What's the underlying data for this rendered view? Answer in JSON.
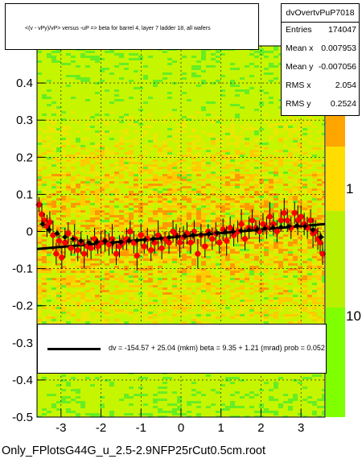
{
  "chart_data": {
    "type": "scatter",
    "title": "<(v - vPy)/vP> versus -uP => beta for barrel 4, layer 7 ladder 18, all wafers",
    "xlim": [
      -3.6,
      3.6
    ],
    "ylim": [
      -0.5,
      0.5
    ],
    "x_ticks": [
      "-3",
      "-2",
      "-1",
      "0",
      "1",
      "2",
      "3"
    ],
    "y_ticks": [
      "-0.5",
      "-0.4",
      "-0.3",
      "-0.2",
      "-0.1",
      "0",
      "0.1",
      "0.2",
      "0.3",
      "0.4"
    ],
    "z_ticks": [
      "1",
      "10"
    ],
    "z_top_label": "0",
    "grid": true,
    "stats": {
      "name": "dvOvertvPuP7018",
      "rows": [
        {
          "label": "Entries",
          "value": "174047"
        },
        {
          "label": "Mean x",
          "value": "0.007953"
        },
        {
          "label": "Mean y",
          "value": "-0.007056"
        },
        {
          "label": "RMS x",
          "value": "2.054"
        },
        {
          "label": "RMS y",
          "value": "0.2524"
        }
      ]
    },
    "fit_text": "dv = -154.57 + 25.04 (mkm) beta =     9.35 +  1.21 (mrad) prob = 0.052",
    "fit_line": {
      "x": [
        -3.6,
        3.6
      ],
      "y": [
        -0.0472,
        0.0201
      ]
    },
    "series": [
      {
        "color": "#ff0000",
        "points": [
          [
            -3.55,
            0.072,
            0.02
          ],
          [
            -3.48,
            0.046,
            0.03
          ],
          [
            -3.42,
            0.03,
            0.02
          ],
          [
            -3.35,
            0.015,
            0.03
          ],
          [
            -3.28,
            0.025,
            0.03
          ],
          [
            -3.2,
            -0.01,
            0.04
          ],
          [
            -3.12,
            -0.06,
            0.03
          ],
          [
            -3.05,
            -0.025,
            0.02
          ],
          [
            -2.98,
            -0.07,
            0.03
          ],
          [
            -2.9,
            -0.03,
            0.04
          ],
          [
            -2.82,
            -0.005,
            0.03
          ],
          [
            -2.75,
            -0.045,
            0.02
          ],
          [
            -2.66,
            -0.02,
            0.04
          ],
          [
            -2.58,
            -0.05,
            0.03
          ],
          [
            -2.5,
            -0.03,
            0.03
          ],
          [
            -2.42,
            -0.06,
            0.04
          ],
          [
            -2.34,
            -0.04,
            0.03
          ],
          [
            -2.25,
            -0.045,
            0.03
          ],
          [
            -2.16,
            -0.02,
            0.03
          ],
          [
            -2.08,
            -0.04,
            0.02
          ],
          [
            -2.0,
            -0.03,
            0.03
          ],
          [
            -1.9,
            -0.025,
            0.03
          ],
          [
            -1.8,
            -0.035,
            0.03
          ],
          [
            -1.72,
            -0.02,
            0.04
          ],
          [
            -1.62,
            -0.06,
            0.03
          ],
          [
            -1.54,
            -0.04,
            0.03
          ],
          [
            -1.45,
            -0.03,
            0.02
          ],
          [
            -1.36,
            -0.02,
            0.03
          ],
          [
            -1.27,
            0.0,
            0.03
          ],
          [
            -1.18,
            -0.03,
            0.03
          ],
          [
            -1.1,
            -0.065,
            0.04
          ],
          [
            -1.0,
            -0.01,
            0.03
          ],
          [
            -0.92,
            -0.04,
            0.02
          ],
          [
            -0.84,
            -0.02,
            0.03
          ],
          [
            -0.75,
            -0.05,
            0.03
          ],
          [
            -0.66,
            -0.03,
            0.03
          ],
          [
            -0.57,
            -0.01,
            0.04
          ],
          [
            -0.48,
            -0.045,
            0.03
          ],
          [
            -0.4,
            -0.02,
            0.02
          ],
          [
            -0.3,
            -0.03,
            0.03
          ],
          [
            -0.2,
            0.0,
            0.03
          ],
          [
            -0.12,
            -0.01,
            0.03
          ],
          [
            -0.03,
            -0.03,
            0.04
          ],
          [
            0.06,
            -0.015,
            0.03
          ],
          [
            0.15,
            -0.005,
            0.03
          ],
          [
            0.24,
            -0.03,
            0.03
          ],
          [
            0.33,
            0.0,
            0.03
          ],
          [
            0.42,
            -0.06,
            0.04
          ],
          [
            0.5,
            -0.01,
            0.03
          ],
          [
            0.6,
            -0.04,
            0.03
          ],
          [
            0.68,
            0.0,
            0.02
          ],
          [
            0.78,
            -0.02,
            0.03
          ],
          [
            0.87,
            -0.005,
            0.03
          ],
          [
            0.96,
            -0.03,
            0.03
          ],
          [
            1.05,
            0.005,
            0.03
          ],
          [
            1.14,
            -0.025,
            0.04
          ],
          [
            1.23,
            0.01,
            0.03
          ],
          [
            1.32,
            -0.01,
            0.03
          ],
          [
            1.42,
            0.0,
            0.03
          ],
          [
            1.51,
            0.02,
            0.04
          ],
          [
            1.6,
            -0.02,
            0.03
          ],
          [
            1.7,
            0.01,
            0.03
          ],
          [
            1.78,
            0.03,
            0.03
          ],
          [
            1.87,
            0.01,
            0.02
          ],
          [
            1.96,
            0.0,
            0.03
          ],
          [
            2.05,
            0.02,
            0.03
          ],
          [
            2.14,
            0.01,
            0.03
          ],
          [
            2.22,
            0.04,
            0.04
          ],
          [
            2.31,
            0.02,
            0.03
          ],
          [
            2.4,
            0.0,
            0.03
          ],
          [
            2.5,
            0.03,
            0.03
          ],
          [
            2.58,
            0.05,
            0.04
          ],
          [
            2.66,
            0.03,
            0.03
          ],
          [
            2.75,
            0.01,
            0.03
          ],
          [
            2.84,
            0.05,
            0.03
          ],
          [
            2.92,
            0.03,
            0.04
          ],
          [
            3.0,
            0.04,
            0.03
          ],
          [
            3.08,
            0.02,
            0.03
          ],
          [
            3.16,
            0.01,
            0.03
          ],
          [
            3.24,
            0.03,
            0.03
          ],
          [
            3.3,
            -0.005,
            0.04
          ],
          [
            3.36,
            0.0,
            0.03
          ],
          [
            3.42,
            -0.02,
            0.03
          ],
          [
            3.48,
            -0.03,
            0.03
          ],
          [
            3.54,
            -0.06,
            0.03
          ]
        ]
      },
      {
        "color": "#000000",
        "points": [
          [
            -3.46,
            0.02,
            0.01
          ],
          [
            -3.3,
            0.005,
            0.01
          ],
          [
            -3.1,
            -0.005,
            0.01
          ],
          [
            -2.9,
            -0.015,
            0.01
          ],
          [
            -2.7,
            -0.02,
            0.01
          ],
          [
            -2.5,
            -0.025,
            0.01
          ],
          [
            -2.3,
            -0.03,
            0.01
          ],
          [
            -2.1,
            -0.028,
            0.01
          ],
          [
            -1.9,
            -0.026,
            0.01
          ],
          [
            -1.7,
            -0.03,
            0.01
          ],
          [
            -1.5,
            -0.028,
            0.01
          ],
          [
            -1.3,
            -0.025,
            0.01
          ],
          [
            -1.1,
            -0.024,
            0.01
          ],
          [
            -0.9,
            -0.022,
            0.01
          ],
          [
            -0.7,
            -0.02,
            0.01
          ],
          [
            -0.5,
            -0.018,
            0.01
          ],
          [
            -0.3,
            -0.016,
            0.01
          ],
          [
            -0.1,
            -0.014,
            0.01
          ],
          [
            0.1,
            -0.012,
            0.01
          ],
          [
            0.3,
            -0.01,
            0.01
          ],
          [
            0.5,
            -0.008,
            0.01
          ],
          [
            0.7,
            -0.006,
            0.01
          ],
          [
            0.9,
            -0.004,
            0.01
          ],
          [
            1.1,
            -0.002,
            0.01
          ],
          [
            1.3,
            0.0,
            0.01
          ],
          [
            1.5,
            0.002,
            0.01
          ],
          [
            1.7,
            0.004,
            0.01
          ],
          [
            1.9,
            0.006,
            0.01
          ],
          [
            2.1,
            0.008,
            0.01
          ],
          [
            2.3,
            0.01,
            0.01
          ],
          [
            2.5,
            0.012,
            0.01
          ],
          [
            2.7,
            0.014,
            0.01
          ],
          [
            2.9,
            0.016,
            0.01
          ],
          [
            3.1,
            0.014,
            0.01
          ],
          [
            3.3,
            0.005,
            0.01
          ],
          [
            3.5,
            -0.015,
            0.01
          ]
        ]
      }
    ],
    "filename": "Only_FPlotsG44G_u_2.5-2.9NFP25rCut0.5cm.root"
  }
}
